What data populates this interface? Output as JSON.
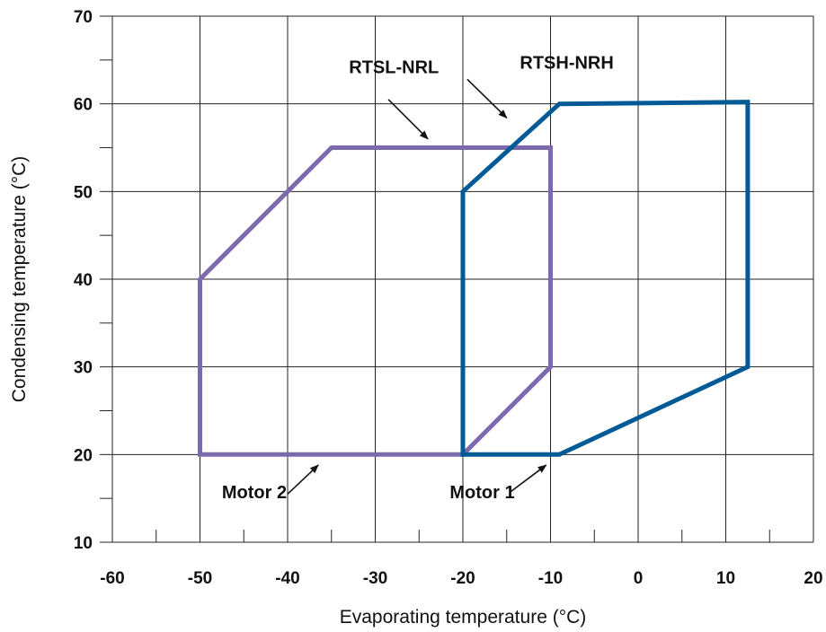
{
  "chart_data": {
    "type": "line",
    "title": "",
    "xlabel": "Evaporating temperature (°C)",
    "ylabel": "Condensing temperature (°C)",
    "xlim": [
      -60,
      20
    ],
    "ylim": [
      10,
      70
    ],
    "x_ticks": [
      "-60",
      "-50",
      "-40",
      "-30",
      "-20",
      "-10",
      "0",
      "10",
      "20"
    ],
    "y_ticks": [
      "10",
      "20",
      "30",
      "40",
      "50",
      "60",
      "70"
    ],
    "x_tick_values": [
      -60,
      -50,
      -40,
      -30,
      -20,
      -10,
      0,
      10,
      20
    ],
    "y_tick_values": [
      10,
      20,
      30,
      40,
      50,
      60,
      70
    ],
    "grid": true,
    "series": [
      {
        "name": "RTSL-NRL",
        "color": "#7b6aad",
        "closed": true,
        "x": [
          -50,
          -50,
          -35,
          -10,
          -10,
          -20
        ],
        "y": [
          20,
          40,
          55,
          55,
          30,
          20
        ]
      },
      {
        "name": "RTSH-NRH",
        "color": "#005a96",
        "closed": true,
        "x": [
          -20,
          -20,
          -9,
          12.5,
          12.5,
          -9
        ],
        "y": [
          20,
          50,
          60,
          60.2,
          30,
          20
        ]
      }
    ],
    "annotations": [
      {
        "text": "RTSL-NRL",
        "label_x": -33,
        "label_y": 63.5,
        "arrow_from": [
          -28.5,
          60.5
        ],
        "arrow_to": [
          -24,
          56
        ]
      },
      {
        "text": "RTSH-NRH",
        "label_x": -13.5,
        "label_y": 64,
        "arrow_from": [
          -19.5,
          62.8
        ],
        "arrow_to": [
          -15,
          58.4
        ]
      },
      {
        "text": "Motor 2",
        "label_x": -47.5,
        "label_y": 15,
        "arrow_from": [
          -40,
          15.5
        ],
        "arrow_to": [
          -36.5,
          18.8
        ]
      },
      {
        "text": "Motor 1",
        "label_x": -21.5,
        "label_y": 15,
        "arrow_from": [
          -14.5,
          15.8
        ],
        "arrow_to": [
          -10.5,
          18.8
        ]
      }
    ]
  }
}
